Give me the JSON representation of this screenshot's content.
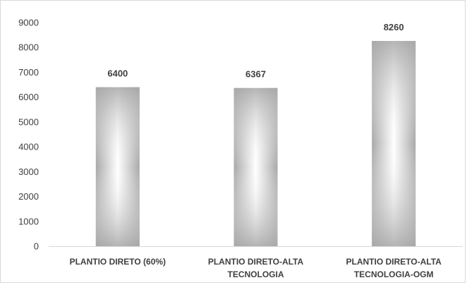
{
  "chart_data": {
    "type": "bar",
    "categories": [
      [
        "PLANTIO DIRETO (60%)"
      ],
      [
        "PLANTIO DIRETO-ALTA",
        "TECNOLOGIA"
      ],
      [
        "PLANTIO DIRETO-ALTA",
        "TECNOLOGIA-OGM"
      ]
    ],
    "values": [
      6400,
      6367,
      8260
    ],
    "data_labels": [
      "6400",
      "6367",
      "8260"
    ],
    "yticks": [
      0,
      1000,
      2000,
      3000,
      4000,
      5000,
      6000,
      7000,
      8000,
      9000
    ],
    "ylim": [
      0,
      9000
    ],
    "title": "",
    "xlabel": "",
    "ylabel": "",
    "grid": false,
    "legend": false,
    "colors": {
      "bar_edge": "#a6a6a6",
      "bar_center": "#ffffff",
      "text": "#404040",
      "axis": "#d9d9d9"
    }
  }
}
